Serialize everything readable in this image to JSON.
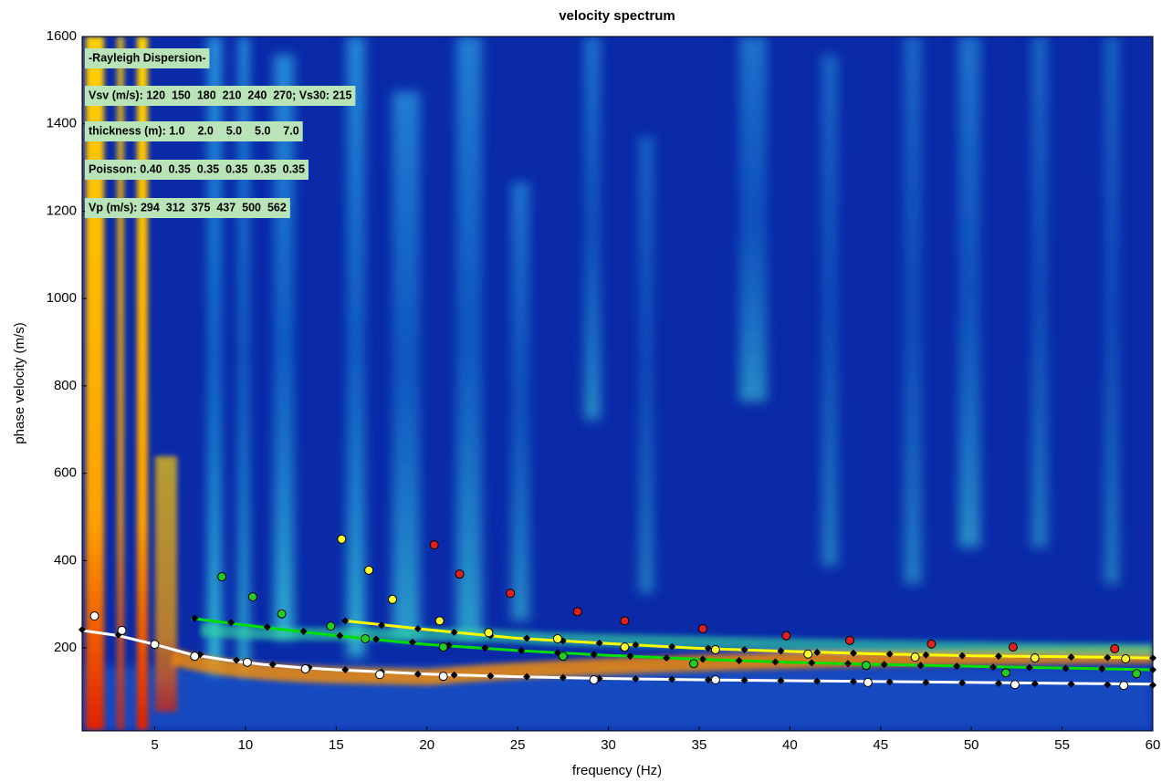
{
  "chart_data": {
    "type": "scatter",
    "title": "velocity spectrum",
    "x_label": "frequency (Hz)",
    "y_label": "phase velocity (m/s)",
    "xlim": [
      1,
      60
    ],
    "ylim": [
      10,
      1600
    ],
    "xticks": [
      5,
      10,
      15,
      20,
      25,
      30,
      35,
      40,
      45,
      50,
      55,
      60
    ],
    "yticks": [
      200,
      400,
      600,
      800,
      1000,
      1200,
      1400,
      1600
    ],
    "annotations": [
      "-Rayleigh Dispersion-",
      "Vsv (m/s): 120  150  180  210  240  270; Vs30: 215",
      "thickness (m): 1.0    2.0    5.0    5.0    7.0",
      "Poisson: 0.40  0.35  0.35  0.35  0.35  0.35",
      "Vp (m/s): 294  312  375  437  500  562"
    ],
    "series": [
      {
        "style": "line",
        "color": "#ffffff",
        "x": [
          1,
          3,
          5,
          7,
          9,
          11,
          13,
          15,
          17,
          20,
          25,
          30,
          35,
          40,
          45,
          50,
          55,
          60
        ],
        "y": [
          240,
          228,
          208,
          185,
          172,
          162,
          155,
          150,
          146,
          140,
          134,
          130,
          127,
          125,
          123,
          121,
          119,
          117
        ]
      },
      {
        "style": "line",
        "color": "#00e000",
        "x": [
          7,
          10,
          15,
          20,
          25,
          30,
          35,
          40,
          45,
          50,
          55,
          60
        ],
        "y": [
          268,
          252,
          228,
          208,
          194,
          183,
          174,
          167,
          162,
          158,
          154,
          150
        ]
      },
      {
        "style": "line",
        "color": "#ffff00",
        "x": [
          15.5,
          20,
          25,
          30,
          35,
          40,
          45,
          50,
          55,
          60
        ],
        "y": [
          262,
          242,
          222,
          210,
          199,
          192,
          186,
          182,
          180,
          177
        ]
      },
      {
        "style": "marker",
        "marker": "diamond",
        "color": "#000000",
        "x": [
          1.0,
          3.0,
          5,
          7.5,
          9.5,
          11.5,
          13.5,
          15.5,
          17.5,
          19.5,
          21.5,
          23.5,
          25.5,
          27.5,
          29.5,
          31.5,
          33.5,
          35.5,
          37.5,
          39.5,
          41.5,
          43.5,
          45.5,
          47.5,
          49.5,
          51.5,
          53.5,
          55.5,
          57.5,
          60
        ],
        "y": [
          242,
          230,
          210,
          185,
          172,
          162,
          155,
          150,
          145,
          140,
          138,
          136,
          134,
          132,
          130,
          129,
          128,
          127,
          126,
          125,
          124,
          123,
          122,
          121,
          120,
          119,
          118,
          117,
          116,
          115
        ]
      },
      {
        "style": "marker",
        "marker": "diamond",
        "color": "#000000",
        "x": [
          7.2,
          9.2,
          11.2,
          13.2,
          15.2,
          17.2,
          19.2,
          21.2,
          23.2,
          25.2,
          27.2,
          29.2,
          31.2,
          33.2,
          35.2,
          37.2,
          39.2,
          41.2,
          43.2,
          45.2,
          47.2,
          49.2,
          51.2,
          53.2,
          55.2,
          57.2,
          60
        ],
        "y": [
          268,
          258,
          248,
          238,
          228,
          220,
          213,
          206,
          200,
          194,
          189,
          185,
          181,
          177,
          174,
          171,
          168,
          166,
          164,
          162,
          160,
          158,
          156,
          155,
          153,
          152,
          150
        ]
      },
      {
        "style": "marker",
        "marker": "diamond",
        "color": "#000000",
        "x": [
          15.5,
          17.5,
          19.5,
          21.5,
          23.5,
          25.5,
          27.5,
          29.5,
          31.5,
          33.5,
          35.5,
          37.5,
          39.5,
          41.5,
          43.5,
          45.5,
          47.5,
          49.5,
          51.5,
          53.5,
          55.5,
          57.5,
          60
        ],
        "y": [
          262,
          252,
          244,
          236,
          228,
          222,
          216,
          211,
          207,
          203,
          199,
          196,
          193,
          190,
          188,
          186,
          184,
          182,
          181,
          180,
          179,
          178,
          177
        ]
      },
      {
        "style": "marker",
        "marker": "circle",
        "color": "#ffffff",
        "x": [
          1.68,
          3.19,
          5.0,
          7.2,
          10.1,
          13.3,
          17.4,
          20.9,
          29.2,
          35.9,
          44.3,
          52.4,
          58.4
        ],
        "y": [
          273,
          240,
          208,
          181,
          167,
          152,
          139,
          135,
          127,
          127,
          121,
          116,
          114
        ]
      },
      {
        "style": "marker",
        "marker": "circle",
        "color": "#22cc22",
        "x": [
          8.7,
          10.4,
          12.0,
          14.7,
          16.6,
          20.9,
          27.5,
          34.7,
          44.2,
          51.9,
          59.1
        ],
        "y": [
          363,
          317,
          278,
          250,
          221,
          202,
          181,
          164,
          160,
          143,
          141
        ]
      },
      {
        "style": "marker",
        "marker": "circle",
        "color": "#ffff33",
        "x": [
          15.3,
          16.8,
          18.1,
          20.7,
          23.4,
          27.2,
          30.9,
          35.9,
          41.0,
          46.9,
          53.5,
          58.5
        ],
        "y": [
          449,
          378,
          311,
          262,
          235,
          221,
          202,
          196,
          186,
          179,
          177,
          175
        ]
      },
      {
        "style": "marker",
        "marker": "circle",
        "color": "#e02020",
        "x": [
          20.4,
          21.8,
          24.6,
          28.3,
          30.9,
          35.2,
          39.8,
          43.3,
          47.8,
          52.3,
          57.9
        ],
        "y": [
          436,
          369,
          325,
          283,
          262,
          244,
          228,
          217,
          209,
          202,
          198
        ]
      }
    ]
  }
}
